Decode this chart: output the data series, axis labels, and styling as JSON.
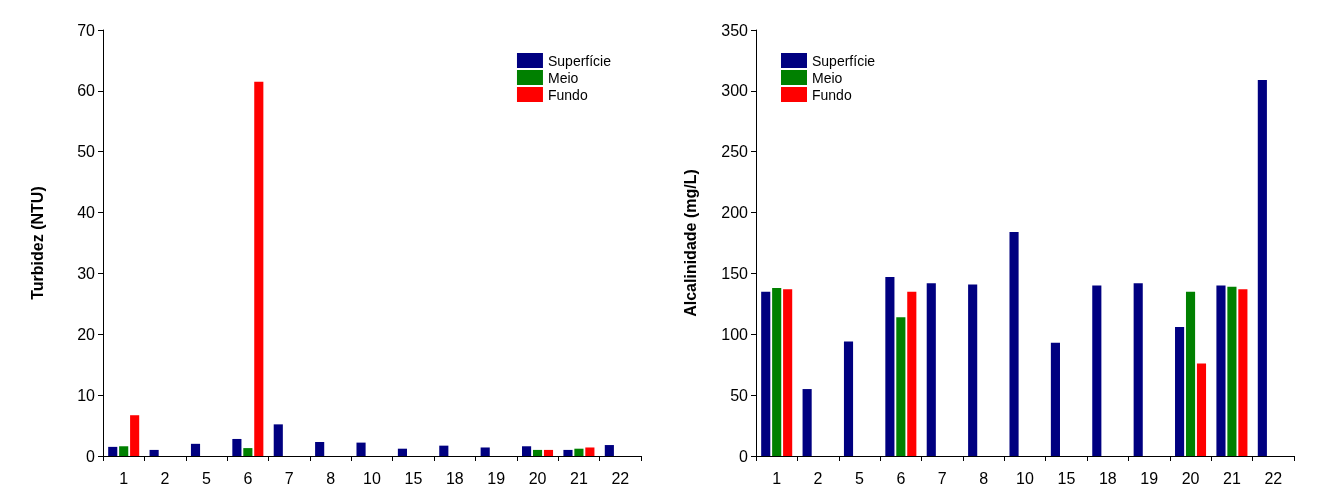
{
  "chart_data": [
    {
      "type": "bar",
      "ylabel": "Turbidez (NTU)",
      "categories": [
        "1",
        "2",
        "5",
        "6",
        "7",
        "8",
        "10",
        "15",
        "18",
        "19",
        "20",
        "21",
        "22"
      ],
      "series": [
        {
          "name": "Superfície",
          "color": "#000080",
          "values": [
            1.5,
            1.0,
            2.0,
            2.8,
            5.2,
            2.3,
            2.2,
            1.2,
            1.7,
            1.4,
            1.6,
            1.0,
            1.8
          ]
        },
        {
          "name": "Meio",
          "color": "#008000",
          "values": [
            1.6,
            null,
            null,
            1.3,
            null,
            null,
            null,
            null,
            null,
            null,
            1.0,
            1.2,
            null
          ]
        },
        {
          "name": "Fundo",
          "color": "#ff0000",
          "values": [
            6.7,
            null,
            null,
            61.5,
            null,
            null,
            null,
            null,
            null,
            null,
            1.0,
            1.4,
            null
          ]
        }
      ],
      "ylim": [
        0,
        70
      ],
      "yticks": [
        0,
        10,
        20,
        30,
        40,
        50,
        60,
        70
      ],
      "grid": false,
      "legend": "top right"
    },
    {
      "type": "bar",
      "ylabel": "Alcalinidade (mg/L)",
      "categories": [
        "1",
        "2",
        "5",
        "6",
        "7",
        "8",
        "10",
        "15",
        "18",
        "19",
        "20",
        "21",
        "22"
      ],
      "series": [
        {
          "name": "Superfície",
          "color": "#000080",
          "values": [
            135,
            55,
            94,
            147,
            142,
            141,
            184,
            93,
            140,
            142,
            106,
            140,
            309
          ]
        },
        {
          "name": "Meio",
          "color": "#008000",
          "values": [
            138,
            null,
            null,
            114,
            null,
            null,
            null,
            null,
            null,
            null,
            135,
            139,
            null
          ]
        },
        {
          "name": "Fundo",
          "color": "#ff0000",
          "values": [
            137,
            null,
            null,
            135,
            null,
            null,
            null,
            null,
            null,
            null,
            76,
            137,
            null
          ]
        }
      ],
      "ylim": [
        0,
        350
      ],
      "yticks": [
        0,
        50,
        100,
        150,
        200,
        250,
        300,
        350
      ],
      "grid": false,
      "legend": "top left"
    }
  ]
}
